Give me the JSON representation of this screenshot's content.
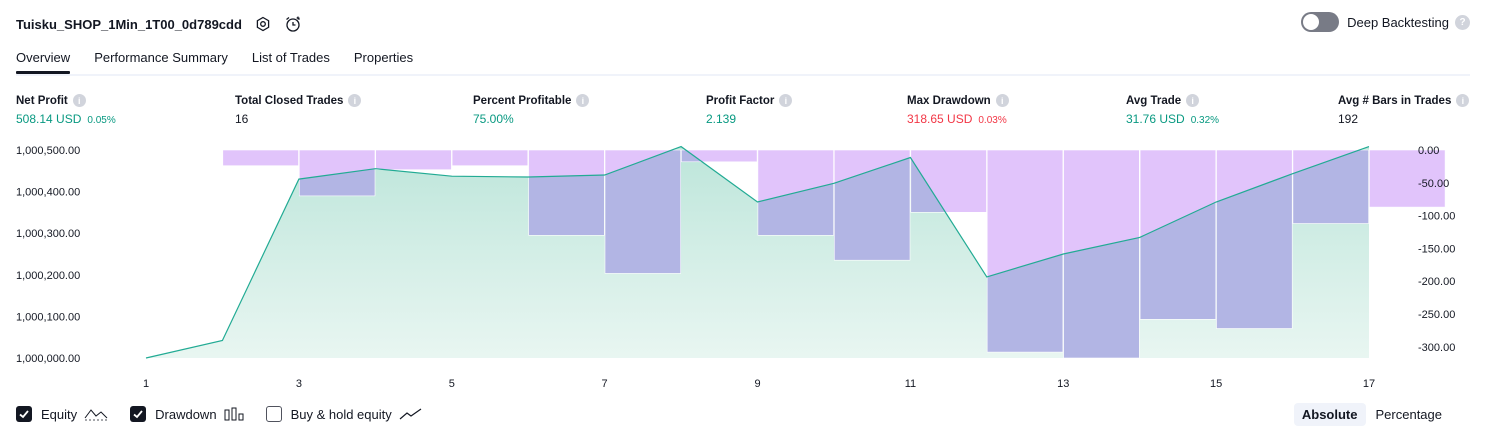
{
  "header": {
    "title": "Tuisku_SHOP_1Min_1T00_0d789cdd"
  },
  "deep_backtesting": {
    "label": "Deep Backtesting",
    "help": "?"
  },
  "tabs": [
    {
      "label": "Overview"
    },
    {
      "label": "Performance Summary"
    },
    {
      "label": "List of Trades"
    },
    {
      "label": "Properties"
    }
  ],
  "metrics": {
    "net_profit": {
      "label": "Net Profit",
      "value": "508.14 USD",
      "pct": "0.05%"
    },
    "total_closed_trades": {
      "label": "Total Closed Trades",
      "value": "16"
    },
    "percent_profitable": {
      "label": "Percent Profitable",
      "value": "75.00%"
    },
    "profit_factor": {
      "label": "Profit Factor",
      "value": "2.139"
    },
    "max_drawdown": {
      "label": "Max Drawdown",
      "value": "318.65 USD",
      "pct": "0.03%"
    },
    "avg_trade": {
      "label": "Avg Trade",
      "value": "31.76 USD",
      "pct": "0.32%"
    },
    "avg_bars": {
      "label": "Avg # Bars in Trades",
      "value": "192"
    }
  },
  "colors": {
    "equity_line": "#22ab94",
    "equity_fill": "#c8ebe1",
    "drawdown_fill": "#e1c4fb",
    "overlap_fill": "#b2b5e4",
    "positive": "#089981",
    "negative": "#f23645"
  },
  "chart_data": {
    "type": "area",
    "equity": {
      "x": [
        1,
        2,
        3,
        4,
        5,
        6,
        7,
        8,
        9,
        10,
        11,
        12,
        13,
        14,
        15,
        16,
        17
      ],
      "y": [
        1000000.0,
        1000042.0,
        1000430.0,
        1000455.0,
        1000437.0,
        1000435.0,
        1000440.0,
        1000508.14,
        1000375.0,
        1000420.0,
        1000482.0,
        1000195.0,
        1000250.0,
        1000290.0,
        1000375.0,
        1000443.0,
        1000508.14
      ],
      "ylim": [
        1000000.0,
        1000500.0
      ],
      "yticks": [
        "1,000,500.00",
        "1,000,400.00",
        "1,000,300.00",
        "1,000,200.00",
        "1,000,100.00",
        "1,000,000.00"
      ]
    },
    "drawdown": {
      "x": [
        1,
        2,
        3,
        4,
        5,
        6,
        7,
        8,
        9,
        10,
        11,
        12,
        13,
        14,
        15,
        16,
        17
      ],
      "values": [
        0,
        -24,
        -70,
        -30,
        -24,
        -130,
        -188,
        -18,
        -130,
        -168,
        -95,
        -308,
        -317,
        -258,
        -272,
        -112,
        -87
      ],
      "ylim": [
        -317,
        0
      ],
      "yticks": [
        "0.00",
        "-50.00",
        "-100.00",
        "-150.00",
        "-200.00",
        "-250.00",
        "-300.00"
      ]
    },
    "xticks": [
      "1",
      "3",
      "5",
      "7",
      "9",
      "11",
      "13",
      "15",
      "17"
    ]
  },
  "footer": {
    "equity_label": "Equity",
    "drawdown_label": "Drawdown",
    "buyhold_label": "Buy & hold equity",
    "absolute_label": "Absolute",
    "percentage_label": "Percentage"
  }
}
